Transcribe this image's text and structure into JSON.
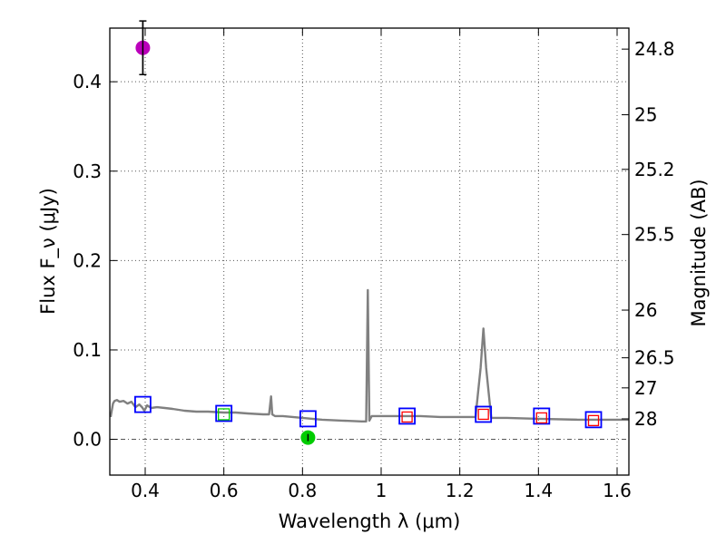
{
  "chart_data": {
    "type": "scatter",
    "xlabel": "Wavelength λ (μm)",
    "ylabel": "Flux F_ν (μJy)",
    "y2label": "Magnitude (AB)",
    "xlim": [
      0.31,
      1.63
    ],
    "ylim": [
      -0.04,
      0.46
    ],
    "grid": true,
    "x_ticks": [
      0.4,
      0.6,
      0.8,
      1.0,
      1.2,
      1.4,
      1.6
    ],
    "x_tick_labels": [
      "0.4",
      "0.6",
      "0.8",
      "1",
      "1.2",
      "1.4",
      "1.6"
    ],
    "y_ticks": [
      0.0,
      0.1,
      0.2,
      0.3,
      0.4
    ],
    "y_tick_labels": [
      "0.0",
      "0.1",
      "0.2",
      "0.3",
      "0.4"
    ],
    "mag_ticks": [
      24.8,
      25,
      25.2,
      25.5,
      26,
      26.5,
      27,
      28
    ],
    "mag_tick_labels": [
      "24.8",
      "25",
      "25.2",
      "25.5",
      "26",
      "26.5",
      "27",
      "28"
    ],
    "colors": {
      "model": "#808080",
      "model_box": "#0000ff",
      "red_box": "#ff0000",
      "green_box": "#00cc00",
      "detection": "#bb00bb",
      "nondetection": "#00cc00",
      "errorbar": "#000000",
      "grid": "#555555"
    },
    "series": [
      {
        "name": "model spectrum",
        "type": "line",
        "x": [
          0.312,
          0.318,
          0.322,
          0.328,
          0.335,
          0.345,
          0.355,
          0.365,
          0.375,
          0.385,
          0.392,
          0.398,
          0.405,
          0.415,
          0.43,
          0.45,
          0.47,
          0.5,
          0.53,
          0.56,
          0.6,
          0.63,
          0.66,
          0.7,
          0.715,
          0.72,
          0.723,
          0.726,
          0.73,
          0.75,
          0.8,
          0.85,
          0.9,
          0.95,
          0.962,
          0.966,
          0.97,
          0.976,
          1.0,
          1.05,
          1.1,
          1.15,
          1.2,
          1.24,
          1.253,
          1.26,
          1.267,
          1.28,
          1.32,
          1.4,
          1.5,
          1.6,
          1.63
        ],
        "values": [
          0.025,
          0.04,
          0.043,
          0.044,
          0.042,
          0.043,
          0.04,
          0.042,
          0.036,
          0.039,
          0.036,
          0.032,
          0.038,
          0.035,
          0.036,
          0.035,
          0.034,
          0.032,
          0.031,
          0.031,
          0.03,
          0.03,
          0.029,
          0.028,
          0.028,
          0.048,
          0.028,
          0.027,
          0.026,
          0.026,
          0.024,
          0.022,
          0.021,
          0.02,
          0.02,
          0.167,
          0.021,
          0.026,
          0.026,
          0.026,
          0.026,
          0.025,
          0.025,
          0.025,
          0.08,
          0.124,
          0.08,
          0.024,
          0.024,
          0.023,
          0.022,
          0.022,
          0.022
        ]
      },
      {
        "name": "model photometry (blue squares)",
        "type": "marker",
        "x": [
          0.394,
          0.6,
          0.814,
          1.066,
          1.26,
          1.408,
          1.54
        ],
        "values": [
          0.039,
          0.029,
          0.023,
          0.026,
          0.028,
          0.026,
          0.022
        ]
      },
      {
        "name": "model photometry (red squares)",
        "type": "marker",
        "x": [
          1.066,
          1.26,
          1.408,
          1.54
        ],
        "values": [
          0.025,
          0.028,
          0.024,
          0.021
        ]
      },
      {
        "name": "model photometry (green square)",
        "type": "marker",
        "x": [
          0.6
        ],
        "values": [
          0.028
        ]
      },
      {
        "name": "observed flux",
        "type": "errorbar",
        "x": [
          0.394,
          0.814
        ],
        "values": [
          0.438,
          0.002
        ],
        "yerr_low": [
          0.03,
          0.004
        ],
        "yerr_high": [
          0.03,
          0.004
        ]
      }
    ]
  }
}
